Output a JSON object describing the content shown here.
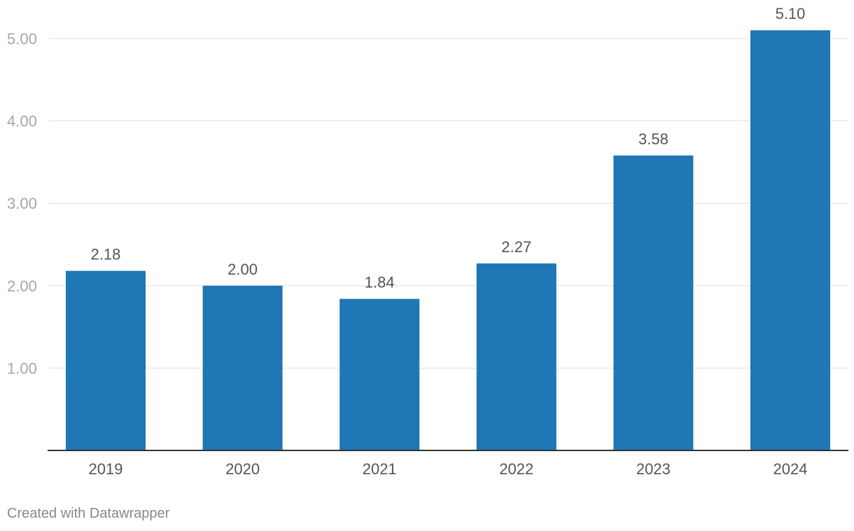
{
  "chart_data": {
    "type": "bar",
    "title": "",
    "xlabel": "",
    "ylabel": "",
    "categories": [
      "2019",
      "2020",
      "2021",
      "2022",
      "2023",
      "2024"
    ],
    "values": [
      2.18,
      2.0,
      1.84,
      2.27,
      3.58,
      5.1
    ],
    "value_labels": [
      "2.18",
      "2.00",
      "1.84",
      "2.27",
      "3.58",
      "5.10"
    ],
    "y_ticks": [
      1.0,
      2.0,
      3.0,
      4.0,
      5.0
    ],
    "y_tick_labels": [
      "1.00",
      "2.00",
      "3.00",
      "4.00",
      "5.00"
    ],
    "ylim": [
      0,
      5.1
    ],
    "grid": true,
    "legend": "none",
    "bar_color": "#1f77b4",
    "gridline_color": "#e0e0e0",
    "axis_color": "#333333"
  },
  "footer": {
    "credit": "Created with Datawrapper"
  }
}
